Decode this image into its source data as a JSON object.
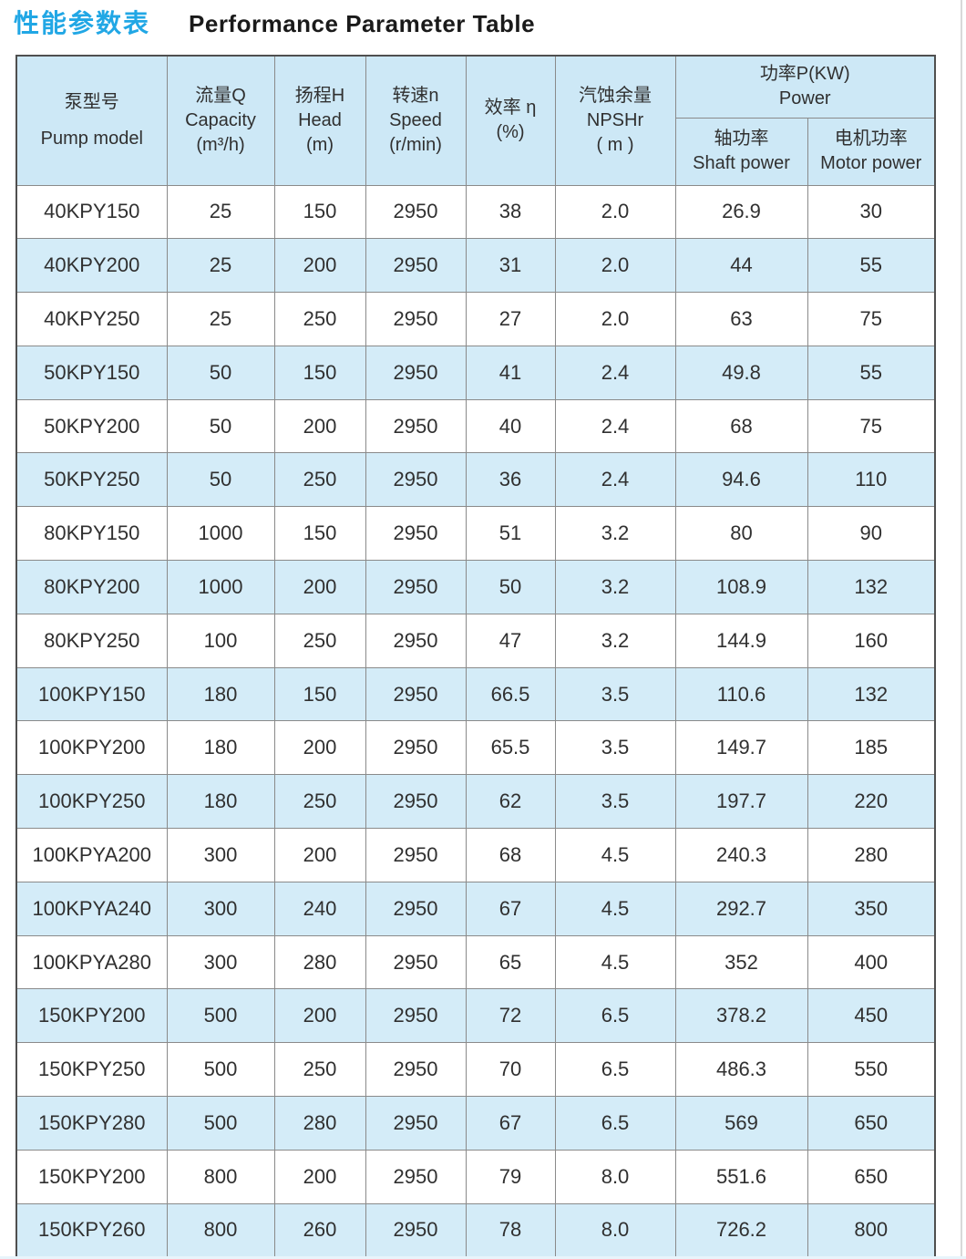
{
  "page": {
    "title_zh": "性能参数表",
    "title_en": "Performance Parameter Table"
  },
  "colors": {
    "title_accent": "#21a7e5",
    "header_fill": "#cde8f6",
    "row_alt_fill": "#d4ecf8",
    "row_fill": "#ffffff",
    "grid_line": "#8a8a8a",
    "grid_outer": "#4f4f4f",
    "text": "#303030"
  },
  "table": {
    "header": {
      "pump_model": {
        "zh": "泵型号",
        "en": "Pump model"
      },
      "capacity": {
        "zh": "流量Q",
        "en": "Capacity",
        "unit": "(m³/h)"
      },
      "head": {
        "zh": "扬程H",
        "en": "Head",
        "unit": "(m)"
      },
      "speed": {
        "zh": "转速n",
        "en": "Speed",
        "unit": "(r/min)"
      },
      "efficiency": {
        "zh": "效率 η",
        "unit": "(%)"
      },
      "npshr": {
        "zh": "汽蚀余量",
        "en": "NPSHr",
        "unit": "( m )"
      },
      "power_group": {
        "zh": "功率P(KW)",
        "en": "Power"
      },
      "shaft_power": {
        "zh": "轴功率",
        "en": "Shaft power"
      },
      "motor_power": {
        "zh": "电机功率",
        "en": "Motor power"
      }
    },
    "column_keys": [
      "pump-model",
      "capacity",
      "head",
      "speed",
      "efficiency",
      "npshr",
      "shaft-power",
      "motor-power"
    ],
    "rows": [
      [
        "40KPY150",
        "25",
        "150",
        "2950",
        "38",
        "2.0",
        "26.9",
        "30"
      ],
      [
        "40KPY200",
        "25",
        "200",
        "2950",
        "31",
        "2.0",
        "44",
        "55"
      ],
      [
        "40KPY250",
        "25",
        "250",
        "2950",
        "27",
        "2.0",
        "63",
        "75"
      ],
      [
        "50KPY150",
        "50",
        "150",
        "2950",
        "41",
        "2.4",
        "49.8",
        "55"
      ],
      [
        "50KPY200",
        "50",
        "200",
        "2950",
        "40",
        "2.4",
        "68",
        "75"
      ],
      [
        "50KPY250",
        "50",
        "250",
        "2950",
        "36",
        "2.4",
        "94.6",
        "110"
      ],
      [
        "80KPY150",
        "1000",
        "150",
        "2950",
        "51",
        "3.2",
        "80",
        "90"
      ],
      [
        "80KPY200",
        "1000",
        "200",
        "2950",
        "50",
        "3.2",
        "108.9",
        "132"
      ],
      [
        "80KPY250",
        "100",
        "250",
        "2950",
        "47",
        "3.2",
        "144.9",
        "160"
      ],
      [
        "100KPY150",
        "180",
        "150",
        "2950",
        "66.5",
        "3.5",
        "110.6",
        "132"
      ],
      [
        "100KPY200",
        "180",
        "200",
        "2950",
        "65.5",
        "3.5",
        "149.7",
        "185"
      ],
      [
        "100KPY250",
        "180",
        "250",
        "2950",
        "62",
        "3.5",
        "197.7",
        "220"
      ],
      [
        "100KPYA200",
        "300",
        "200",
        "2950",
        "68",
        "4.5",
        "240.3",
        "280"
      ],
      [
        "100KPYA240",
        "300",
        "240",
        "2950",
        "67",
        "4.5",
        "292.7",
        "350"
      ],
      [
        "100KPYA280",
        "300",
        "280",
        "2950",
        "65",
        "4.5",
        "352",
        "400"
      ],
      [
        "150KPY200",
        "500",
        "200",
        "2950",
        "72",
        "6.5",
        "378.2",
        "450"
      ],
      [
        "150KPY250",
        "500",
        "250",
        "2950",
        "70",
        "6.5",
        "486.3",
        "550"
      ],
      [
        "150KPY280",
        "500",
        "280",
        "2950",
        "67",
        "6.5",
        "569",
        "650"
      ],
      [
        "150KPY200",
        "800",
        "200",
        "2950",
        "79",
        "8.0",
        "551.6",
        "650"
      ],
      [
        "150KPY260",
        "800",
        "260",
        "2950",
        "78",
        "8.0",
        "726.2",
        "800"
      ]
    ]
  }
}
